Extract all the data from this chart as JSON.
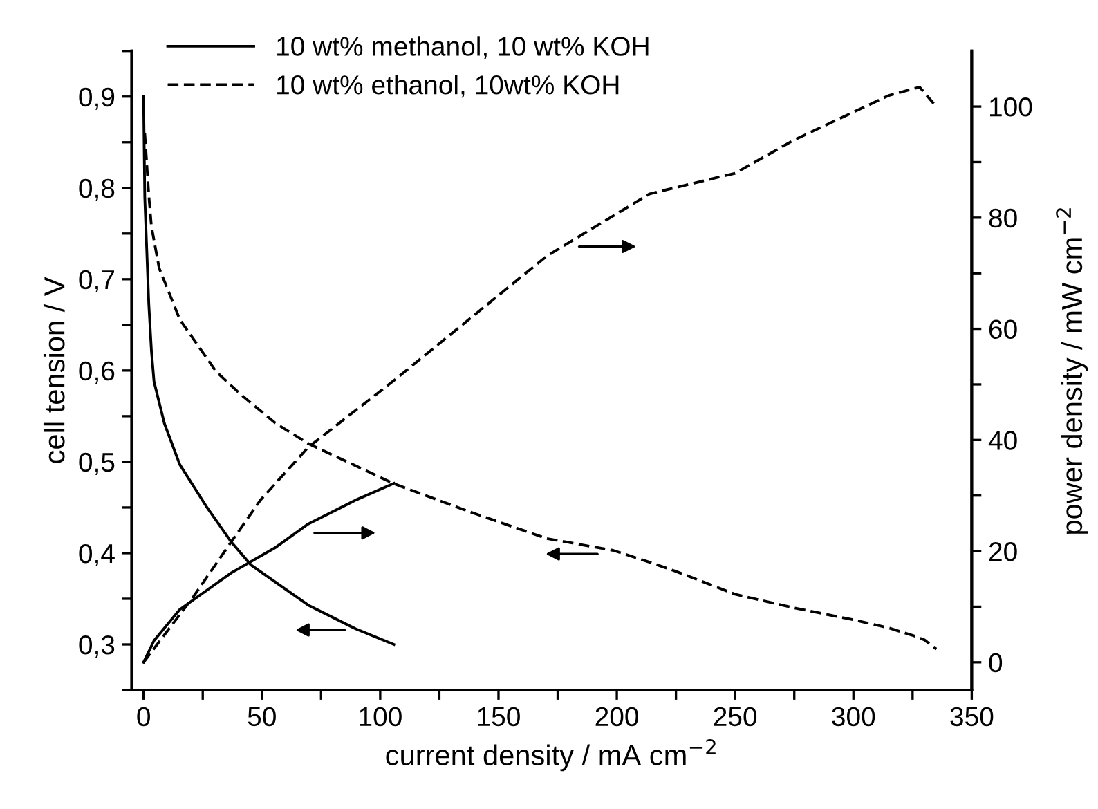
{
  "chart_data": {
    "type": "line",
    "xlabel": "current density / mA cm$^{−2}$",
    "ylabel": "cell tension / V",
    "y2label": "power density / mW cm$^{−2}$",
    "xlim": [
      -5,
      350
    ],
    "xticks": [
      0,
      {
        "value": 25,
        "label": null
      },
      50,
      {
        "value": 75,
        "label": null
      },
      100,
      {
        "value": 125,
        "label": null
      },
      150,
      {
        "value": 175,
        "label": null
      },
      200,
      {
        "value": 225,
        "label": null
      },
      250,
      {
        "value": 275,
        "label": null
      },
      300,
      {
        "value": 325,
        "label": null
      },
      350
    ],
    "ylim": [
      0.25,
      0.95
    ],
    "yticks": [
      {
        "value": 0.25,
        "label": null
      },
      {
        "value": 0.3,
        "label": "0,3"
      },
      {
        "value": 0.35,
        "label": null
      },
      {
        "value": 0.4,
        "label": "0,4"
      },
      {
        "value": 0.45,
        "label": null
      },
      {
        "value": 0.5,
        "label": "0,5"
      },
      {
        "value": 0.55,
        "label": null
      },
      {
        "value": 0.6,
        "label": "0,6"
      },
      {
        "value": 0.65,
        "label": null
      },
      {
        "value": 0.7,
        "label": "0,7"
      },
      {
        "value": 0.75,
        "label": null
      },
      {
        "value": 0.8,
        "label": "0,8"
      },
      {
        "value": 0.85,
        "label": null
      },
      {
        "value": 0.9,
        "label": "0,9"
      },
      {
        "value": 0.95,
        "label": null
      }
    ],
    "y2lim": [
      -5,
      110
    ],
    "y2ticks": [
      0,
      {
        "value": 10,
        "label": null
      },
      20,
      {
        "value": 30,
        "label": null
      },
      40,
      {
        "value": 50,
        "label": null
      },
      60,
      {
        "value": 70,
        "label": null
      },
      80,
      {
        "value": 90,
        "label": null
      },
      100
    ],
    "grid": false,
    "legend": "top left",
    "series": [
      {
        "name": "10 wt% methanol, 10 wt% KOH",
        "color": "#000000",
        "line_style": "solid",
        "x": [
          0,
          0.5,
          2.2,
          3.3,
          4.4,
          8.8,
          15.3,
          26.3,
          37.1,
          45.4,
          69.6,
          89.7,
          105.8
        ],
        "values": [
          0.9,
          0.79,
          0.673,
          0.622,
          0.588,
          0.542,
          0.497,
          0.452,
          0.412,
          0.387,
          0.343,
          0.317,
          0.3
        ]
      },
      {
        "color": "#000000",
        "line_style": "solid",
        "axis": "y2",
        "x": [
          0,
          4.4,
          15.3,
          37.1,
          55.9,
          69.6,
          89.7,
          105.8
        ],
        "values": [
          0,
          3.9,
          9.5,
          16.1,
          20.7,
          24.9,
          29.2,
          32.2
        ]
      },
      {
        "name": "10 wt% ethanol, 10wt% KOH",
        "color": "#000000",
        "line_style": "dashed",
        "x": [
          0.5,
          2.2,
          3.3,
          6.6,
          15.3,
          30.6,
          41.4,
          55.9,
          69.6,
          105.8,
          138.1,
          170.4,
          198.5,
          213.9,
          225,
          250,
          275,
          300,
          315,
          325,
          330,
          335
        ],
        "values": [
          0.86,
          0.792,
          0.758,
          0.712,
          0.656,
          0.599,
          0.573,
          0.542,
          0.52,
          0.476,
          0.445,
          0.416,
          0.403,
          0.39,
          0.38,
          0.355,
          0.34,
          0.327,
          0.318,
          0.31,
          0.305,
          0.295
        ]
      },
      {
        "color": "#000000",
        "line_style": "dashed",
        "axis": "y2",
        "x": [
          0,
          21.2,
          35.3,
          49.4,
          69.6,
          105.8,
          138.1,
          170.4,
          213.9,
          250,
          275,
          300,
          315,
          328,
          335
        ],
        "values": [
          0,
          11.9,
          20.6,
          29.2,
          38.7,
          50.7,
          61.9,
          73.1,
          84.3,
          88,
          94,
          99,
          102,
          103.5,
          100
        ]
      }
    ]
  }
}
